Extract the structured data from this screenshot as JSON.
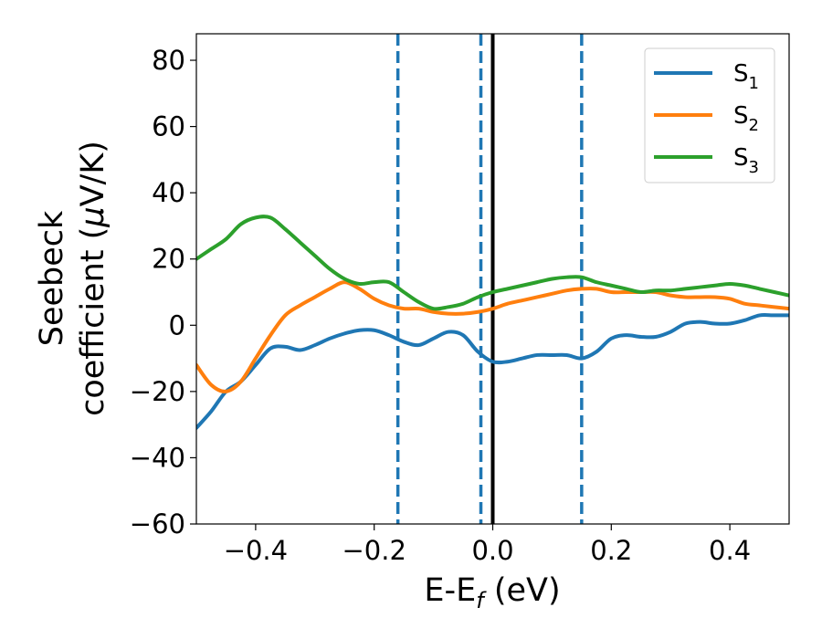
{
  "chart_data": {
    "type": "line",
    "title": "",
    "xlabel": {
      "main": "E-E",
      "sub": "f",
      "suffix": " (eV)"
    },
    "ylabel": {
      "line1": "Seebeck",
      "line2_prefix": "coefficient  (",
      "line2_mu": "μ",
      "line2_suffix": "V/K)"
    },
    "xlim": [
      -0.5,
      0.5
    ],
    "ylim": [
      -60,
      88
    ],
    "xticks": [
      -0.4,
      -0.2,
      0.0,
      0.2,
      0.4
    ],
    "xtick_labels": [
      "−0.4",
      "−0.2",
      "0.0",
      "0.2",
      "0.4"
    ],
    "yticks": [
      -60,
      -40,
      -20,
      0,
      20,
      40,
      60,
      80
    ],
    "ytick_labels": [
      "−60",
      "−40",
      "−20",
      "0",
      "20",
      "40",
      "60",
      "80"
    ],
    "grid": false,
    "legend_position": "top-right",
    "vertical_lines": [
      {
        "x": -0.16,
        "style": "dashed",
        "color": "#1f77b4"
      },
      {
        "x": -0.02,
        "style": "dashed",
        "color": "#1f77b4"
      },
      {
        "x": 0.0,
        "style": "solid",
        "color": "#000000"
      },
      {
        "x": 0.15,
        "style": "dashed",
        "color": "#1f77b4"
      }
    ],
    "series": [
      {
        "name": "S",
        "sub": "1",
        "color": "#1f77b4",
        "x": [
          -0.5,
          -0.475,
          -0.45,
          -0.425,
          -0.4,
          -0.375,
          -0.35,
          -0.325,
          -0.3,
          -0.275,
          -0.25,
          -0.225,
          -0.2,
          -0.175,
          -0.15,
          -0.125,
          -0.1,
          -0.075,
          -0.05,
          -0.025,
          0.0,
          0.025,
          0.05,
          0.075,
          0.1,
          0.125,
          0.15,
          0.175,
          0.2,
          0.225,
          0.25,
          0.275,
          0.3,
          0.325,
          0.35,
          0.375,
          0.4,
          0.425,
          0.45,
          0.475,
          0.5
        ],
        "y": [
          -31,
          -26,
          -20,
          -17,
          -12,
          -7,
          -6.5,
          -7.5,
          -6,
          -4,
          -2.5,
          -1.5,
          -1.5,
          -3,
          -5,
          -6,
          -4,
          -2,
          -3,
          -8,
          -11,
          -11,
          -10,
          -9,
          -9,
          -9,
          -10,
          -8,
          -4,
          -3,
          -3.5,
          -3.5,
          -2,
          0.5,
          1,
          0.5,
          0.5,
          1.5,
          3,
          3,
          3
        ]
      },
      {
        "name": "S",
        "sub": "2",
        "color": "#ff7f0e",
        "x": [
          -0.5,
          -0.475,
          -0.45,
          -0.425,
          -0.4,
          -0.375,
          -0.35,
          -0.325,
          -0.3,
          -0.275,
          -0.25,
          -0.225,
          -0.2,
          -0.175,
          -0.15,
          -0.125,
          -0.1,
          -0.075,
          -0.05,
          -0.025,
          0.0,
          0.025,
          0.05,
          0.075,
          0.1,
          0.125,
          0.15,
          0.175,
          0.2,
          0.225,
          0.25,
          0.275,
          0.3,
          0.325,
          0.35,
          0.375,
          0.4,
          0.425,
          0.45,
          0.475,
          0.5
        ],
        "y": [
          -12,
          -18,
          -20,
          -17,
          -10,
          -3,
          3,
          6,
          8.5,
          11,
          13,
          11,
          8,
          6,
          5,
          5,
          4,
          3.5,
          3.5,
          4,
          5,
          6.5,
          7.5,
          8.5,
          9.5,
          10.5,
          11,
          11,
          10,
          10,
          10,
          10,
          9,
          8.5,
          8.5,
          8.5,
          8,
          6.5,
          6,
          5.5,
          5
        ]
      },
      {
        "name": "S",
        "sub": "3",
        "color": "#2ca02c",
        "x": [
          -0.5,
          -0.475,
          -0.45,
          -0.425,
          -0.4,
          -0.375,
          -0.35,
          -0.325,
          -0.3,
          -0.275,
          -0.25,
          -0.225,
          -0.2,
          -0.175,
          -0.15,
          -0.125,
          -0.1,
          -0.075,
          -0.05,
          -0.025,
          0.0,
          0.025,
          0.05,
          0.075,
          0.1,
          0.125,
          0.15,
          0.175,
          0.2,
          0.225,
          0.25,
          0.275,
          0.3,
          0.325,
          0.35,
          0.375,
          0.4,
          0.425,
          0.45,
          0.475,
          0.5
        ],
        "y": [
          20,
          23,
          26,
          30.5,
          32.5,
          32.5,
          29,
          25,
          21,
          17,
          14,
          12.5,
          13,
          13,
          10,
          7,
          5,
          5.5,
          6.5,
          8.5,
          10,
          11,
          12,
          13,
          14,
          14.5,
          14.5,
          13,
          12,
          11,
          10,
          10.5,
          10.5,
          11,
          11.5,
          12,
          12.5,
          12,
          11,
          10,
          9
        ]
      }
    ]
  }
}
